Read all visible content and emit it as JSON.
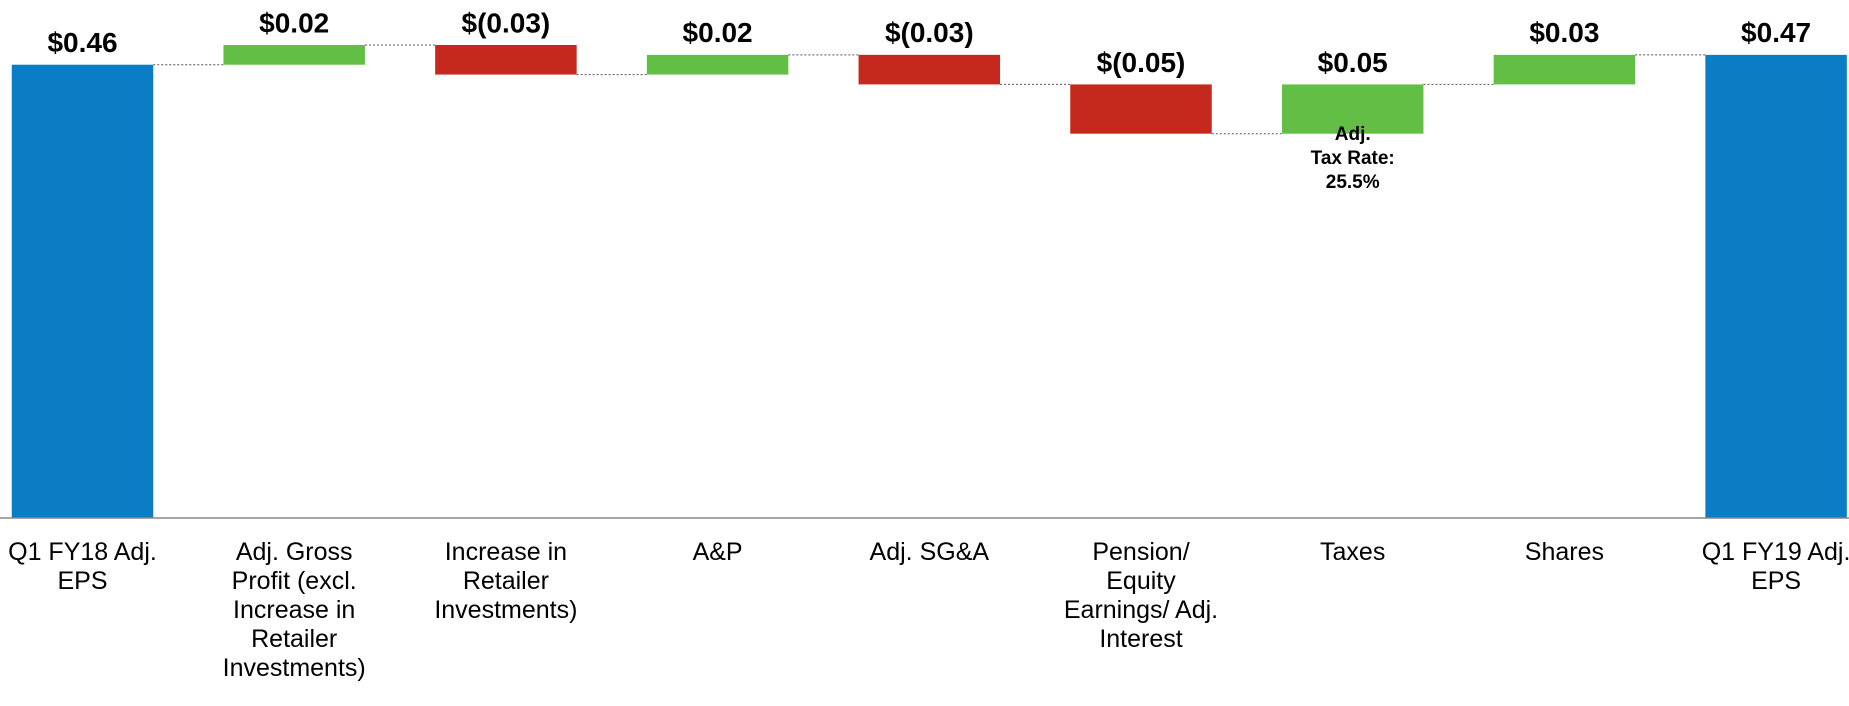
{
  "chart_data": {
    "type": "waterfall",
    "categories": [
      "Q1 FY18 Adj. EPS",
      "Adj. Gross Profit (excl. Increase in Retailer Investments)",
      "Increase in Retailer Investments)",
      "A&P",
      "Adj. SG&A",
      "Pension/ Equity Earnings/ Adj. Interest",
      "Taxes",
      "Shares",
      "Q1 FY19 Adj. EPS"
    ],
    "values": [
      0.46,
      0.02,
      -0.03,
      0.02,
      -0.03,
      -0.05,
      0.05,
      0.03,
      0.47
    ],
    "value_labels": [
      "$0.46",
      "$0.02",
      "$(0.03)",
      "$0.02",
      "$(0.03)",
      "$(0.05)",
      "$0.05",
      "$0.03",
      "$0.47"
    ],
    "is_total": [
      true,
      false,
      false,
      false,
      false,
      false,
      false,
      false,
      true
    ],
    "colors": {
      "total": "#0a7dc4",
      "increase": "#63be45",
      "decrease": "#c5281c"
    },
    "annotation": {
      "category_index": 6,
      "lines": [
        "Adj.",
        "Tax Rate:",
        "25.5%"
      ]
    }
  }
}
